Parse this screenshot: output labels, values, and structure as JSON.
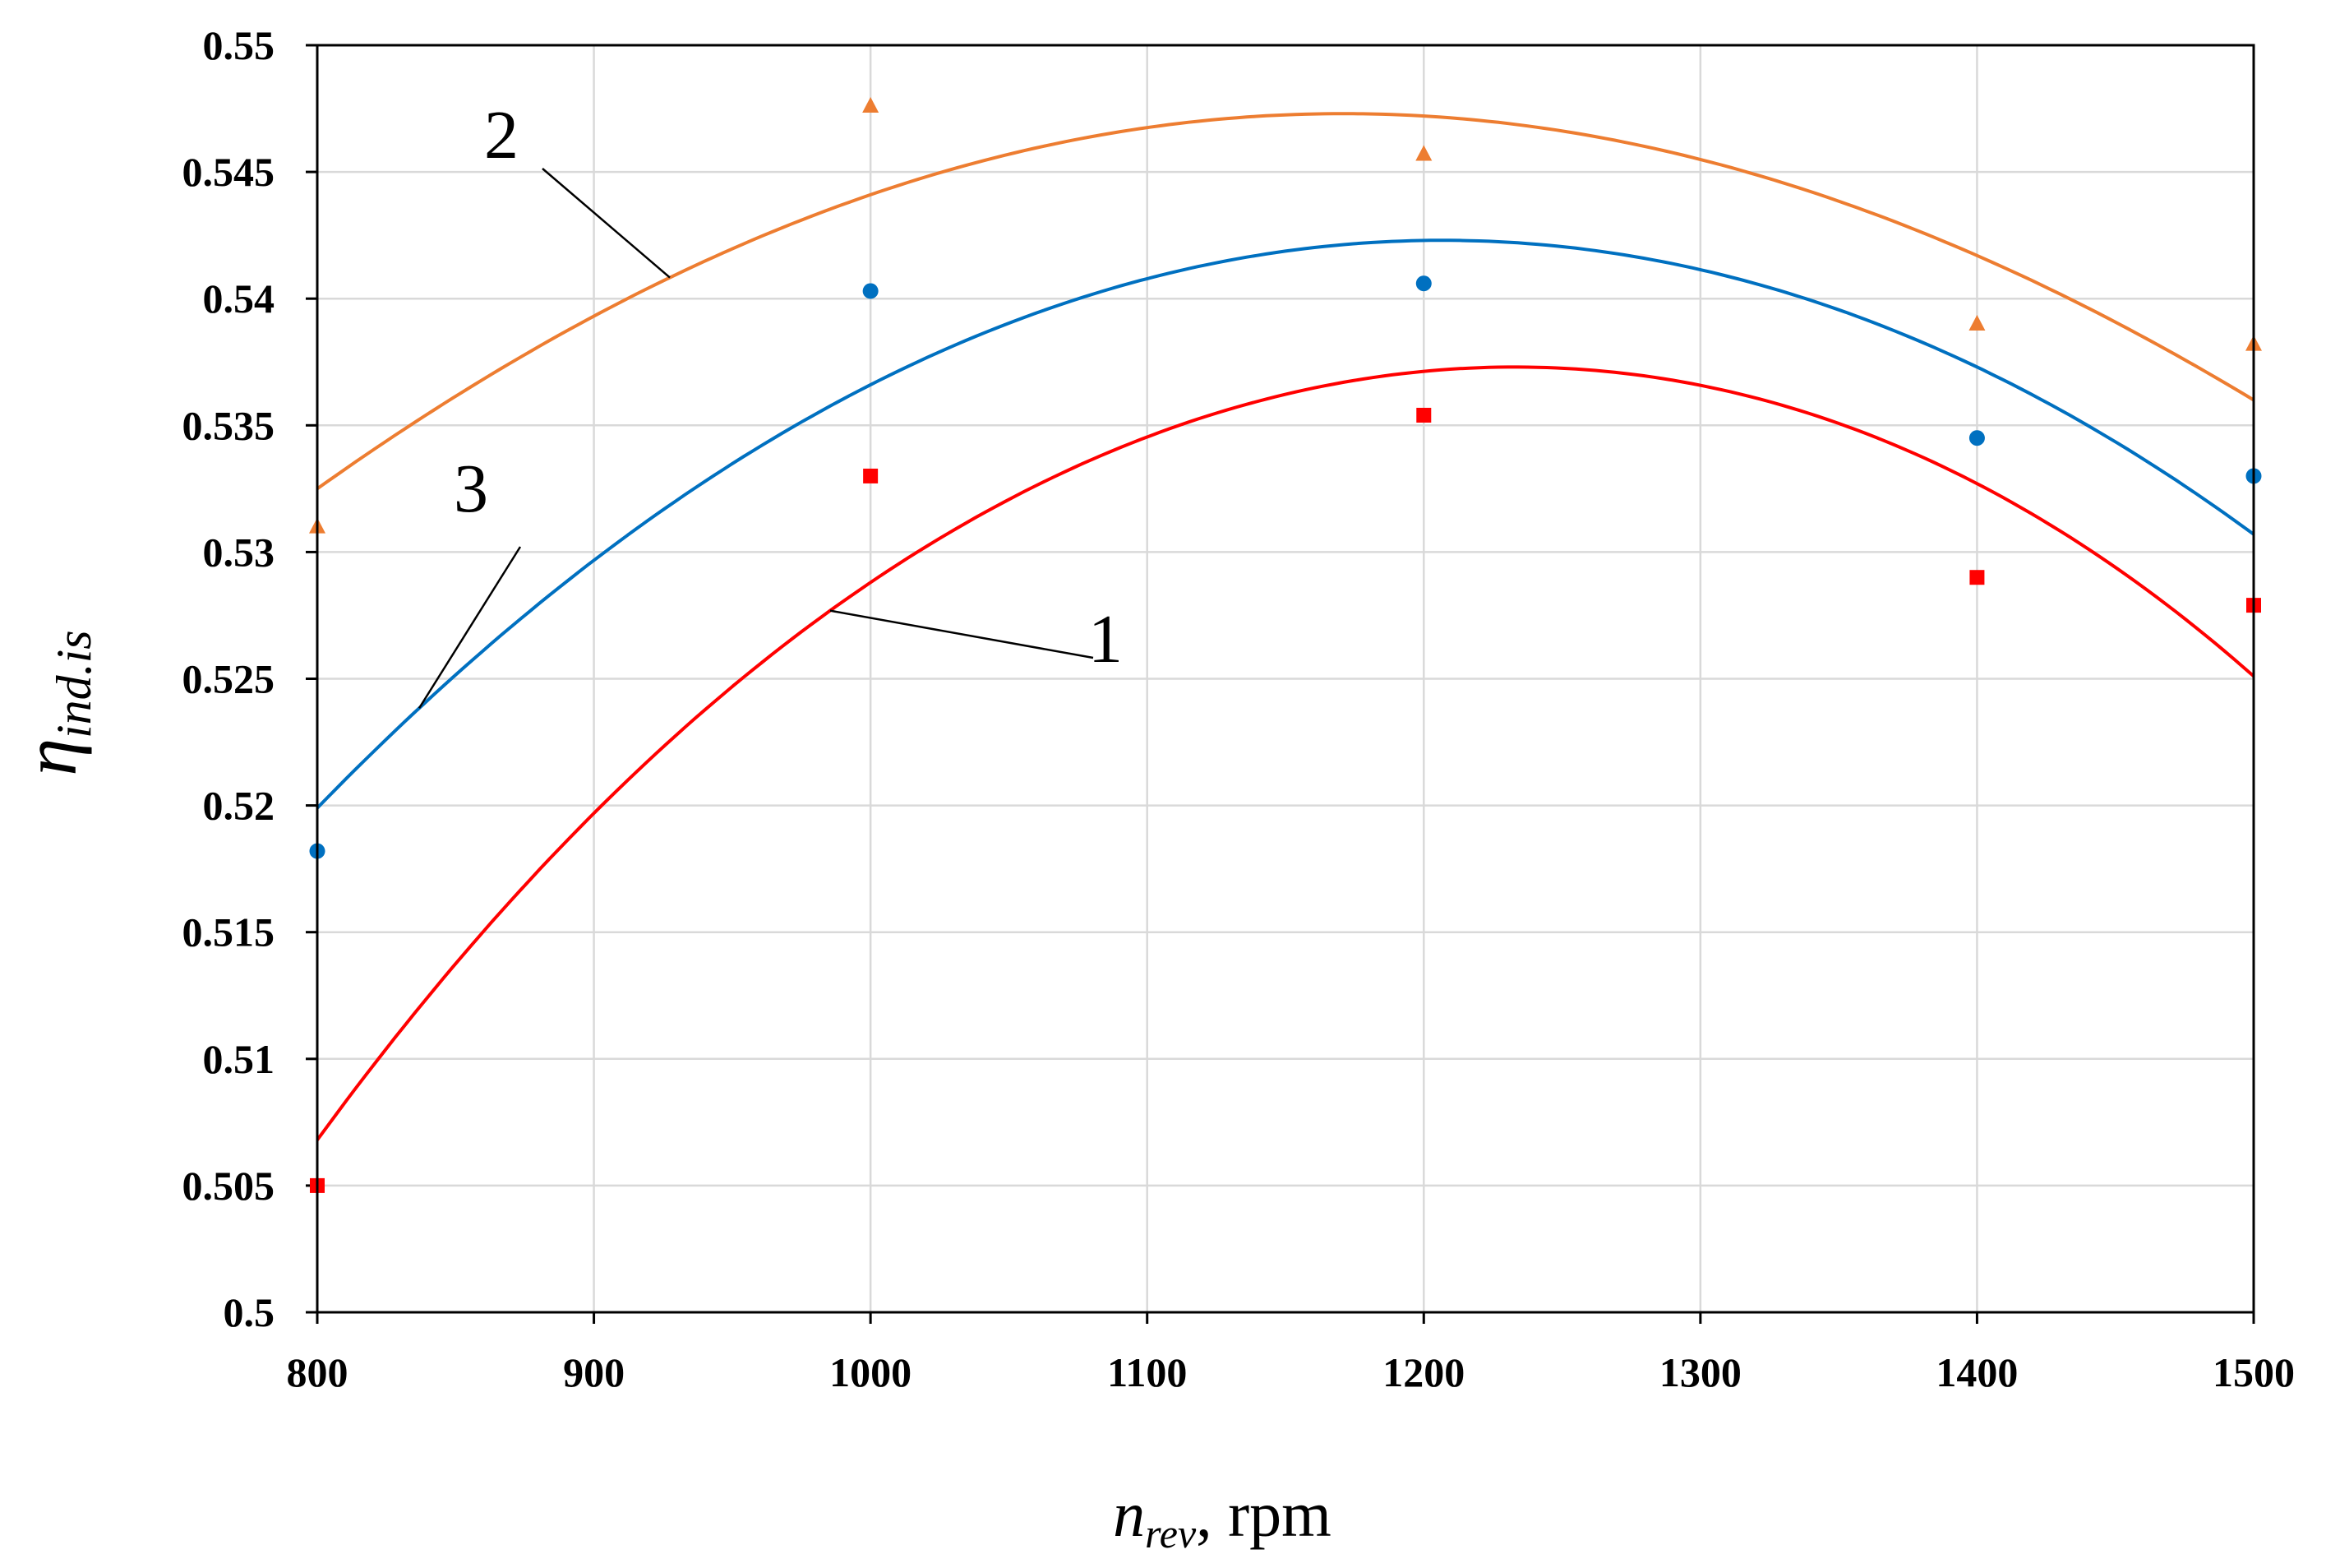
{
  "chart_data": {
    "type": "scatter",
    "title": "",
    "xlabel": {
      "main": "n",
      "sub": "rev",
      "suffix": ", rpm"
    },
    "ylabel": {
      "main": "η",
      "sub": "ind.is"
    },
    "xlim": [
      800,
      1500
    ],
    "ylim": [
      0.5,
      0.55
    ],
    "grid": true,
    "x_ticks": [
      "800",
      "900",
      "1000",
      "1100",
      "1200",
      "1300",
      "1400",
      "1500"
    ],
    "y_ticks": [
      "0.5",
      "0.505",
      "0.51",
      "0.515",
      "0.52",
      "0.525",
      "0.53",
      "0.535",
      "0.54",
      "0.545",
      "0.55"
    ],
    "series": [
      {
        "name": "1",
        "color": "#ff0000",
        "marker": "square",
        "x": [
          800,
          1000,
          1200,
          1400,
          1500
        ],
        "values": [
          0.505,
          0.533,
          0.5354,
          0.529,
          0.5279
        ],
        "trend": {
          "x": [
            800,
            1000,
            1230,
            1400,
            1500
          ],
          "y": [
            0.5068,
            0.5288,
            0.5373,
            0.5327,
            0.5251
          ]
        }
      },
      {
        "name": "2",
        "color": "#ed7d31",
        "marker": "triangle",
        "x": [
          800,
          1000,
          1200,
          1400,
          1500
        ],
        "values": [
          0.531,
          0.5476,
          0.5457,
          0.539,
          0.5382
        ],
        "trend": {
          "x": [
            800,
            1000,
            1170,
            1400,
            1500
          ],
          "y": [
            0.5325,
            0.5441,
            0.5473,
            0.5417,
            0.536
          ]
        }
      },
      {
        "name": "3",
        "color": "#0070c0",
        "marker": "circle",
        "x": [
          800,
          1000,
          1200,
          1400,
          1500
        ],
        "values": [
          0.5182,
          0.5403,
          0.5406,
          0.5345,
          0.533
        ],
        "trend": {
          "x": [
            800,
            1000,
            1210,
            1400,
            1500
          ],
          "y": [
            0.5199,
            0.5366,
            0.5423,
            0.5373,
            0.5307
          ]
        }
      }
    ],
    "annotations": [
      {
        "text": "1",
        "series": "1"
      },
      {
        "text": "2",
        "series": "2"
      },
      {
        "text": "3",
        "series": "3"
      }
    ]
  }
}
